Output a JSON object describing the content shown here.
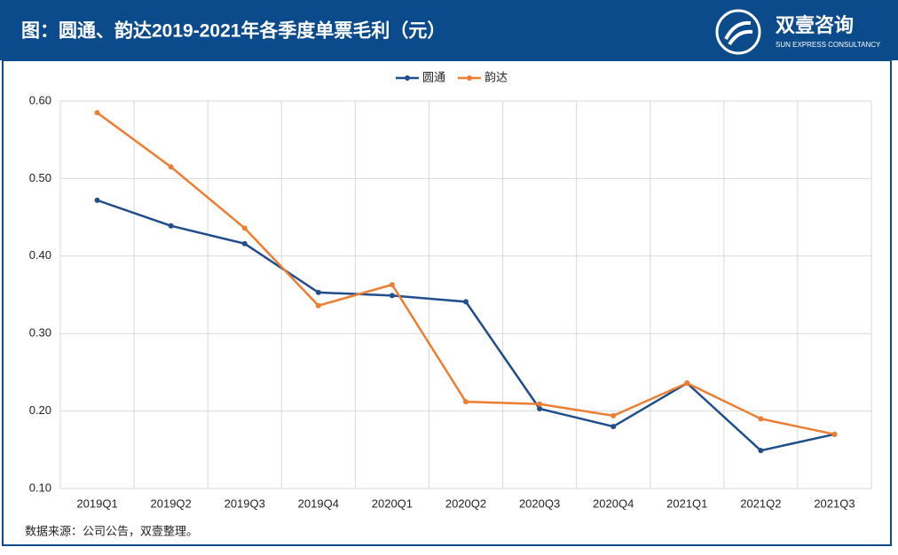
{
  "chart_data": {
    "type": "line",
    "title": "图：圆通、韵达2019-2021年各季度单票毛利（元）",
    "brand_name": "双壹咨询",
    "brand_subtitle": "SUN EXPRESS CONSULTANCY",
    "source": "数据来源：公司公告，双壹整理。",
    "categories": [
      "2019Q1",
      "2019Q2",
      "2019Q3",
      "2019Q4",
      "2020Q1",
      "2020Q2",
      "2020Q3",
      "2020Q4",
      "2021Q1",
      "2021Q2",
      "2021Q3"
    ],
    "series": [
      {
        "name": "圆通",
        "color": "#1f4e8c",
        "values": [
          0.472,
          0.439,
          0.416,
          0.353,
          0.349,
          0.341,
          0.203,
          0.18,
          0.236,
          0.149,
          0.17
        ]
      },
      {
        "name": "韵达",
        "color": "#ed7d31",
        "values": [
          0.585,
          0.515,
          0.436,
          0.336,
          0.363,
          0.212,
          0.209,
          0.194,
          0.236,
          0.19,
          0.17
        ]
      }
    ],
    "ylim": [
      0.1,
      0.6
    ],
    "yticks": [
      {
        "value": 0.1,
        "label": "0.10"
      },
      {
        "value": 0.2,
        "label": "0.20"
      },
      {
        "value": 0.3,
        "label": "0.30"
      },
      {
        "value": 0.4,
        "label": "0.40"
      },
      {
        "value": 0.5,
        "label": "0.50"
      },
      {
        "value": 0.6,
        "label": "0.60"
      }
    ],
    "grid": true,
    "legend": "top"
  }
}
